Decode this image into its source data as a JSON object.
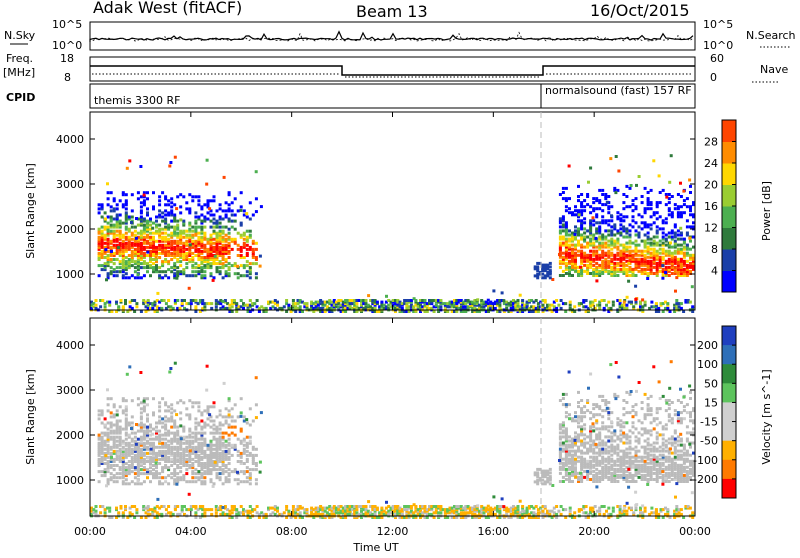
{
  "header": {
    "station": "Adak West (fitACF)",
    "beam": "Beam 13",
    "date": "16/Oct/2015"
  },
  "panels": {
    "nsky": {
      "left_label": "N.Sky",
      "right_label": "N.Search",
      "left_ticks": [
        "10^5",
        "10^0"
      ],
      "right_ticks": [
        "10^5",
        "10^0"
      ]
    },
    "freq": {
      "left_label_top": "Freq.",
      "left_label_bottom": "[MHz]",
      "right_label": "Nave",
      "left_ticks": [
        "18",
        "8"
      ],
      "right_ticks": [
        "60",
        "0"
      ]
    },
    "cpid": {
      "label": "CPID",
      "segments": [
        {
          "text": "themis 3300 RF"
        },
        {
          "text": "normalsound (fast) 157 RF"
        }
      ]
    }
  },
  "colors": {
    "power": [
      "#0000ff",
      "#1a3fa8",
      "#2f7a3c",
      "#4caf50",
      "#9acd32",
      "#ffd700",
      "#ff8c00",
      "#ff4500",
      "#ff0000"
    ],
    "velocity": [
      "#1f3fbf",
      "#2e6fb8",
      "#2e8b3a",
      "#5dc45d",
      "#cfcfcf",
      "#cfcfcf",
      "#ffb000",
      "#ff7a00",
      "#ff0000"
    ],
    "ground": "#bbbbbb"
  },
  "chart_data": [
    {
      "type": "heatmap",
      "name": "power",
      "ylabel": "Slant Range [km]",
      "x_ticks": [
        "00:00",
        "04:00",
        "08:00",
        "12:00",
        "16:00",
        "20:00",
        "00:00"
      ],
      "y_ticks": [
        "1000",
        "2000",
        "3000",
        "4000"
      ],
      "ylim": [
        200,
        4600
      ],
      "xlim": [
        0,
        24
      ],
      "colorbar": {
        "label": "Power [dB]",
        "ticks": [
          "4",
          "8",
          "12",
          "16",
          "20",
          "24",
          "28"
        ],
        "range": [
          0,
          32
        ]
      },
      "regions": [
        {
          "t0": 0.3,
          "t1": 6.6,
          "r0": 950,
          "r1": 2850,
          "peak_range": 1700,
          "peak_value": 28
        },
        {
          "t0": 18.6,
          "t1": 23.9,
          "r0": 1000,
          "r1": 3000,
          "peak_range": 1500,
          "peak_value": 30
        },
        {
          "t0": 0.0,
          "t1": 24.0,
          "r0": 200,
          "r1": 450,
          "peak_range": 300,
          "peak_value": 12
        }
      ]
    },
    {
      "type": "heatmap",
      "name": "velocity",
      "ylabel": "Slant Range [km]",
      "xlabel": "Time UT",
      "x_ticks": [
        "00:00",
        "04:00",
        "08:00",
        "12:00",
        "16:00",
        "20:00",
        "00:00"
      ],
      "y_ticks": [
        "1000",
        "2000",
        "3000",
        "4000"
      ],
      "ylim": [
        200,
        4600
      ],
      "xlim": [
        0,
        24
      ],
      "colorbar": {
        "label": "Velocity [m s^-1]",
        "ticks": [
          "200",
          "100",
          "50",
          "15",
          "-15",
          "-50",
          "-100",
          "-200"
        ],
        "range": [
          -200,
          200
        ]
      }
    }
  ]
}
